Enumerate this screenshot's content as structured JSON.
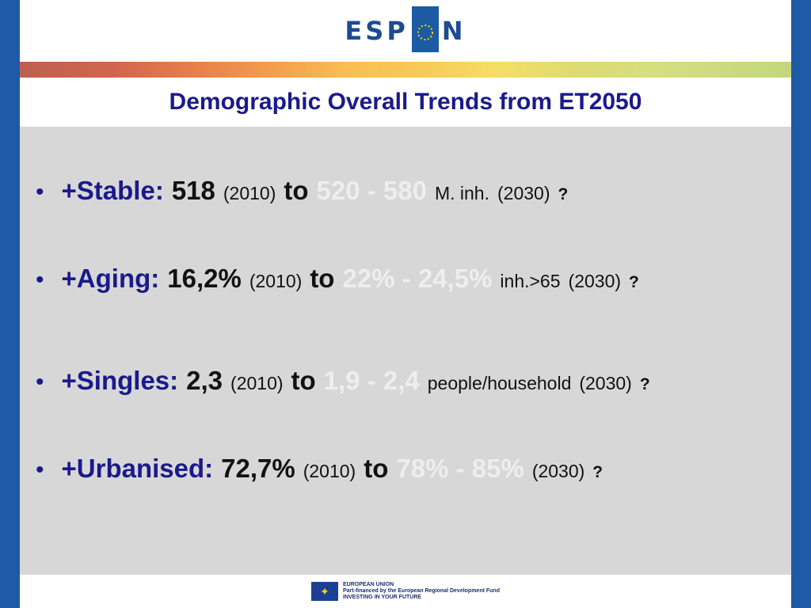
{
  "header": {
    "logo_left": "ESP",
    "logo_right": "N"
  },
  "title": "Demographic Overall Trends from ET2050",
  "bullet_symbol": "•",
  "bullets": [
    {
      "label": "+Stable:",
      "value": "518",
      "year_from": "(2010)",
      "to": "to",
      "range": "520 - 580",
      "unit": "M. inh.",
      "year_to": "(2030)",
      "question": "?"
    },
    {
      "label": "+Aging:",
      "value": "16,2%",
      "year_from": "(2010)",
      "to": "to",
      "range": "22% - 24,5%",
      "unit": "inh.>65",
      "year_to": "(2030)",
      "question": "?"
    },
    {
      "label": "+Singles:",
      "value": "2,3",
      "year_from": "(2010)",
      "to": "to",
      "range": "1,9 - 2,4",
      "unit": "people/household",
      "year_to": "(2030)",
      "question": "?"
    },
    {
      "label": "+Urbanised:",
      "value": "72,7%",
      "year_from": "(2010)",
      "to": "to",
      "range": "78% - 85%",
      "unit": "",
      "year_to": "(2030)",
      "question": "?"
    }
  ],
  "footer": {
    "line1": "EUROPEAN UNION",
    "line2": "Part-financed by the European Regional Development Fund",
    "line3": "INVESTING IN YOUR FUTURE"
  },
  "colors": {
    "title": "#1a1a8c",
    "range_text": "#eeeeee",
    "content_bg": "#d7d7d7",
    "frame": "#1f5aa6"
  }
}
